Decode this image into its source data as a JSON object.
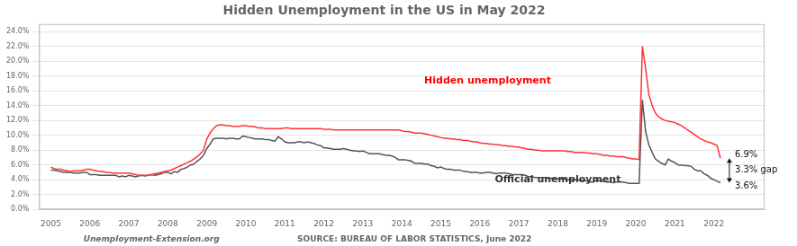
{
  "chart_data": {
    "type": "line",
    "title": "Hidden Unemployment in the US in May 2022",
    "x": [
      2005.0,
      2005.083,
      2005.167,
      2005.25,
      2005.333,
      2005.417,
      2005.5,
      2005.583,
      2005.667,
      2005.75,
      2005.833,
      2005.917,
      2006.0,
      2006.083,
      2006.167,
      2006.25,
      2006.333,
      2006.417,
      2006.5,
      2006.583,
      2006.667,
      2006.75,
      2006.833,
      2006.917,
      2007.0,
      2007.083,
      2007.167,
      2007.25,
      2007.333,
      2007.417,
      2007.5,
      2007.583,
      2007.667,
      2007.75,
      2007.833,
      2007.917,
      2008.0,
      2008.083,
      2008.167,
      2008.25,
      2008.333,
      2008.417,
      2008.5,
      2008.583,
      2008.667,
      2008.75,
      2008.833,
      2008.917,
      2009.0,
      2009.083,
      2009.167,
      2009.25,
      2009.333,
      2009.417,
      2009.5,
      2009.583,
      2009.667,
      2009.75,
      2009.833,
      2009.917,
      2010.0,
      2010.083,
      2010.167,
      2010.25,
      2010.333,
      2010.417,
      2010.5,
      2010.583,
      2010.667,
      2010.75,
      2010.833,
      2010.917,
      2011.0,
      2011.083,
      2011.167,
      2011.25,
      2011.333,
      2011.417,
      2011.5,
      2011.583,
      2011.667,
      2011.75,
      2011.833,
      2011.917,
      2012.0,
      2012.083,
      2012.167,
      2012.25,
      2012.333,
      2012.417,
      2012.5,
      2012.583,
      2012.667,
      2012.75,
      2012.833,
      2012.917,
      2013.0,
      2013.083,
      2013.167,
      2013.25,
      2013.333,
      2013.417,
      2013.5,
      2013.583,
      2013.667,
      2013.75,
      2013.833,
      2013.917,
      2014.0,
      2014.083,
      2014.167,
      2014.25,
      2014.333,
      2014.417,
      2014.5,
      2014.583,
      2014.667,
      2014.75,
      2014.833,
      2014.917,
      2015.0,
      2015.083,
      2015.167,
      2015.25,
      2015.333,
      2015.417,
      2015.5,
      2015.583,
      2015.667,
      2015.75,
      2015.833,
      2015.917,
      2016.0,
      2016.083,
      2016.167,
      2016.25,
      2016.333,
      2016.417,
      2016.5,
      2016.583,
      2016.667,
      2016.75,
      2016.833,
      2016.917,
      2017.0,
      2017.083,
      2017.167,
      2017.25,
      2017.333,
      2017.417,
      2017.5,
      2017.583,
      2017.667,
      2017.75,
      2017.833,
      2017.917,
      2018.0,
      2018.083,
      2018.167,
      2018.25,
      2018.333,
      2018.417,
      2018.5,
      2018.583,
      2018.667,
      2018.75,
      2018.833,
      2018.917,
      2019.0,
      2019.083,
      2019.167,
      2019.25,
      2019.333,
      2019.417,
      2019.5,
      2019.583,
      2019.667,
      2019.75,
      2019.833,
      2019.917,
      2020.0,
      2020.083,
      2020.167,
      2020.25,
      2020.333,
      2020.417,
      2020.5,
      2020.583,
      2020.667,
      2020.75,
      2020.833,
      2020.917,
      2021.0,
      2021.083,
      2021.167,
      2021.25,
      2021.333,
      2021.417,
      2021.5,
      2021.583,
      2021.667,
      2021.75,
      2021.833,
      2021.917,
      2022.0,
      2022.083,
      2022.167
    ],
    "series": [
      {
        "color": "#FF3333",
        "values": [
          0.057,
          0.055,
          0.054,
          0.054,
          0.053,
          0.052,
          0.051,
          0.052,
          0.052,
          0.052,
          0.053,
          0.054,
          0.054,
          0.053,
          0.052,
          0.051,
          0.051,
          0.05,
          0.05,
          0.049,
          0.049,
          0.049,
          0.049,
          0.049,
          0.049,
          0.048,
          0.047,
          0.046,
          0.046,
          0.046,
          0.046,
          0.047,
          0.048,
          0.049,
          0.05,
          0.051,
          0.052,
          0.053,
          0.055,
          0.057,
          0.059,
          0.061,
          0.063,
          0.065,
          0.068,
          0.071,
          0.075,
          0.08,
          0.095,
          0.103,
          0.109,
          0.113,
          0.114,
          0.114,
          0.113,
          0.113,
          0.112,
          0.112,
          0.112,
          0.113,
          0.113,
          0.112,
          0.112,
          0.111,
          0.11,
          0.11,
          0.109,
          0.109,
          0.109,
          0.109,
          0.109,
          0.109,
          0.11,
          0.11,
          0.109,
          0.109,
          0.109,
          0.109,
          0.109,
          0.109,
          0.109,
          0.109,
          0.109,
          0.109,
          0.108,
          0.108,
          0.108,
          0.107,
          0.107,
          0.107,
          0.107,
          0.107,
          0.107,
          0.107,
          0.107,
          0.107,
          0.107,
          0.107,
          0.107,
          0.107,
          0.107,
          0.107,
          0.107,
          0.107,
          0.107,
          0.107,
          0.107,
          0.107,
          0.106,
          0.105,
          0.105,
          0.104,
          0.103,
          0.103,
          0.103,
          0.102,
          0.101,
          0.1,
          0.099,
          0.098,
          0.097,
          0.096,
          0.096,
          0.095,
          0.095,
          0.094,
          0.094,
          0.093,
          0.093,
          0.092,
          0.091,
          0.091,
          0.09,
          0.089,
          0.089,
          0.088,
          0.088,
          0.087,
          0.087,
          0.086,
          0.086,
          0.085,
          0.085,
          0.084,
          0.084,
          0.083,
          0.082,
          0.081,
          0.081,
          0.08,
          0.08,
          0.079,
          0.079,
          0.079,
          0.079,
          0.079,
          0.079,
          0.079,
          0.079,
          0.078,
          0.078,
          0.077,
          0.077,
          0.077,
          0.077,
          0.076,
          0.076,
          0.075,
          0.075,
          0.074,
          0.073,
          0.073,
          0.072,
          0.072,
          0.071,
          0.071,
          0.071,
          0.07,
          0.069,
          0.068,
          0.068,
          0.067,
          0.22,
          0.19,
          0.155,
          0.14,
          0.13,
          0.125,
          0.122,
          0.12,
          0.119,
          0.118,
          0.117,
          0.115,
          0.113,
          0.11,
          0.107,
          0.104,
          0.101,
          0.098,
          0.095,
          0.093,
          0.091,
          0.09,
          0.088,
          0.086,
          0.069
        ]
      },
      {
        "color": "#555555",
        "values": [
          0.053,
          0.053,
          0.052,
          0.051,
          0.05,
          0.05,
          0.05,
          0.049,
          0.049,
          0.049,
          0.05,
          0.05,
          0.047,
          0.047,
          0.047,
          0.046,
          0.046,
          0.046,
          0.046,
          0.046,
          0.046,
          0.044,
          0.045,
          0.044,
          0.046,
          0.045,
          0.044,
          0.045,
          0.046,
          0.045,
          0.046,
          0.047,
          0.046,
          0.047,
          0.048,
          0.05,
          0.05,
          0.048,
          0.051,
          0.05,
          0.054,
          0.055,
          0.057,
          0.06,
          0.061,
          0.065,
          0.068,
          0.073,
          0.082,
          0.088,
          0.095,
          0.096,
          0.096,
          0.096,
          0.095,
          0.096,
          0.096,
          0.095,
          0.095,
          0.099,
          0.098,
          0.097,
          0.096,
          0.095,
          0.095,
          0.095,
          0.094,
          0.094,
          0.093,
          0.092,
          0.098,
          0.095,
          0.091,
          0.09,
          0.09,
          0.09,
          0.091,
          0.091,
          0.09,
          0.091,
          0.09,
          0.089,
          0.087,
          0.086,
          0.083,
          0.083,
          0.082,
          0.081,
          0.081,
          0.081,
          0.082,
          0.081,
          0.08,
          0.079,
          0.079,
          0.078,
          0.079,
          0.077,
          0.075,
          0.075,
          0.075,
          0.075,
          0.074,
          0.073,
          0.073,
          0.072,
          0.07,
          0.067,
          0.067,
          0.067,
          0.066,
          0.065,
          0.062,
          0.062,
          0.062,
          0.061,
          0.061,
          0.059,
          0.058,
          0.056,
          0.057,
          0.055,
          0.054,
          0.054,
          0.053,
          0.053,
          0.053,
          0.051,
          0.051,
          0.05,
          0.05,
          0.05,
          0.049,
          0.049,
          0.05,
          0.05,
          0.049,
          0.048,
          0.049,
          0.049,
          0.049,
          0.048,
          0.047,
          0.047,
          0.047,
          0.047,
          0.046,
          0.044,
          0.044,
          0.043,
          0.043,
          0.043,
          0.043,
          0.042,
          0.042,
          0.041,
          0.041,
          0.041,
          0.041,
          0.04,
          0.04,
          0.04,
          0.04,
          0.039,
          0.039,
          0.038,
          0.037,
          0.037,
          0.04,
          0.038,
          0.038,
          0.037,
          0.037,
          0.036,
          0.037,
          0.037,
          0.037,
          0.036,
          0.035,
          0.035,
          0.035,
          0.035,
          0.148,
          0.105,
          0.087,
          0.077,
          0.068,
          0.065,
          0.062,
          0.06,
          0.068,
          0.065,
          0.063,
          0.06,
          0.06,
          0.059,
          0.059,
          0.058,
          0.054,
          0.052,
          0.052,
          0.048,
          0.046,
          0.042,
          0.04,
          0.038,
          0.036
        ]
      }
    ],
    "xlim": [
      2004.7,
      2023.3
    ],
    "xticks": [
      2005,
      2006,
      2007,
      2008,
      2009,
      2010,
      2011,
      2012,
      2013,
      2014,
      2015,
      2016,
      2017,
      2018,
      2019,
      2020,
      2021,
      2022
    ],
    "ylim": [
      0.0,
      0.25
    ],
    "yticks": [
      {
        "value": 0.0,
        "label": "0.0%"
      },
      {
        "value": 0.02,
        "label": "2.0%"
      },
      {
        "value": 0.04,
        "label": "4.0%"
      },
      {
        "value": 0.06,
        "label": "6.0%"
      },
      {
        "value": 0.08,
        "label": "8.0%"
      },
      {
        "value": 0.1,
        "label": "10.0%"
      },
      {
        "value": 0.12,
        "label": "12.0%"
      },
      {
        "value": 0.14,
        "label": "14.0%"
      },
      {
        "value": 0.16,
        "label": "16.0%"
      },
      {
        "value": 0.18,
        "label": "18.0%"
      },
      {
        "value": 0.2,
        "label": "20.0%"
      },
      {
        "value": 0.22,
        "label": "22.0%"
      },
      {
        "value": 0.24,
        "label": "24.0%"
      }
    ],
    "grid": "y",
    "annotations": [
      {
        "text": "Hidden unemployment",
        "x": 2016.2,
        "y": 0.173,
        "color": "#FF0000"
      },
      {
        "text": "Official unemployment",
        "x": 2018.0,
        "y": 0.04,
        "color": "#333333"
      },
      {
        "text": "6.9%",
        "y": 0.069
      },
      {
        "text": "3.3% gap",
        "arrow": [
          0.069,
          0.036
        ]
      },
      {
        "text": "3.6%",
        "y": 0.036
      }
    ],
    "footer": [
      "Unemployment-Extension.org",
      "SOURCE: BUREAU OF LABOR STATISTICS, June 2022"
    ]
  }
}
